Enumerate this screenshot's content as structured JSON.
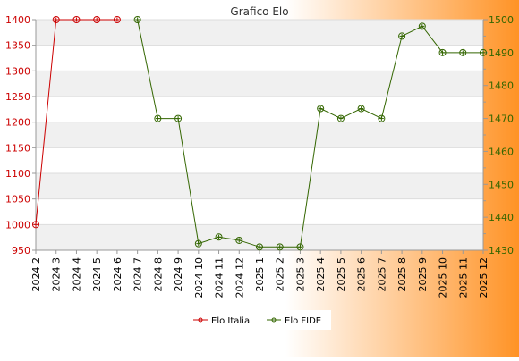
{
  "chart_data": {
    "type": "line",
    "title": "Grafico Elo",
    "x_labels": [
      "2024 2",
      "2024 3",
      "2024 4",
      "2024 5",
      "2024 6",
      "2024 7",
      "2024 8",
      "2024 9",
      "2024 10",
      "2024 11",
      "2024 12",
      "2025 1",
      "2025 2",
      "2025 3",
      "2025 4",
      "2025 5",
      "2025 6",
      "2025 7",
      "2025 8",
      "2025 9",
      "2025 10",
      "2025 11",
      "2025 12"
    ],
    "axes": {
      "left": {
        "min": 950,
        "max": 1400,
        "ticks": [
          950,
          1000,
          1050,
          1100,
          1150,
          1200,
          1250,
          1300,
          1350,
          1400
        ],
        "color": "#cc0000"
      },
      "right": {
        "min": 1430,
        "max": 1500,
        "ticks": [
          1430,
          1440,
          1450,
          1460,
          1470,
          1480,
          1490,
          1500
        ],
        "color": "#336600"
      }
    },
    "series": [
      {
        "name": "Elo Italia",
        "axis": "left",
        "color": "#cc0000",
        "values": [
          1000,
          1400,
          1400,
          1400,
          1400,
          null,
          null,
          null,
          null,
          null,
          null,
          null,
          null,
          null,
          null,
          null,
          null,
          null,
          null,
          null,
          null,
          null,
          null
        ]
      },
      {
        "name": "Elo FIDE",
        "axis": "right",
        "color": "#336600",
        "values": [
          null,
          null,
          null,
          null,
          null,
          1500,
          1470,
          1470,
          1432,
          1434,
          1433,
          1431,
          1431,
          1431,
          1473,
          1470,
          1473,
          1470,
          1495,
          1498,
          1490,
          1490,
          1490
        ]
      }
    ],
    "grid": true,
    "legend_position": "bottom"
  }
}
